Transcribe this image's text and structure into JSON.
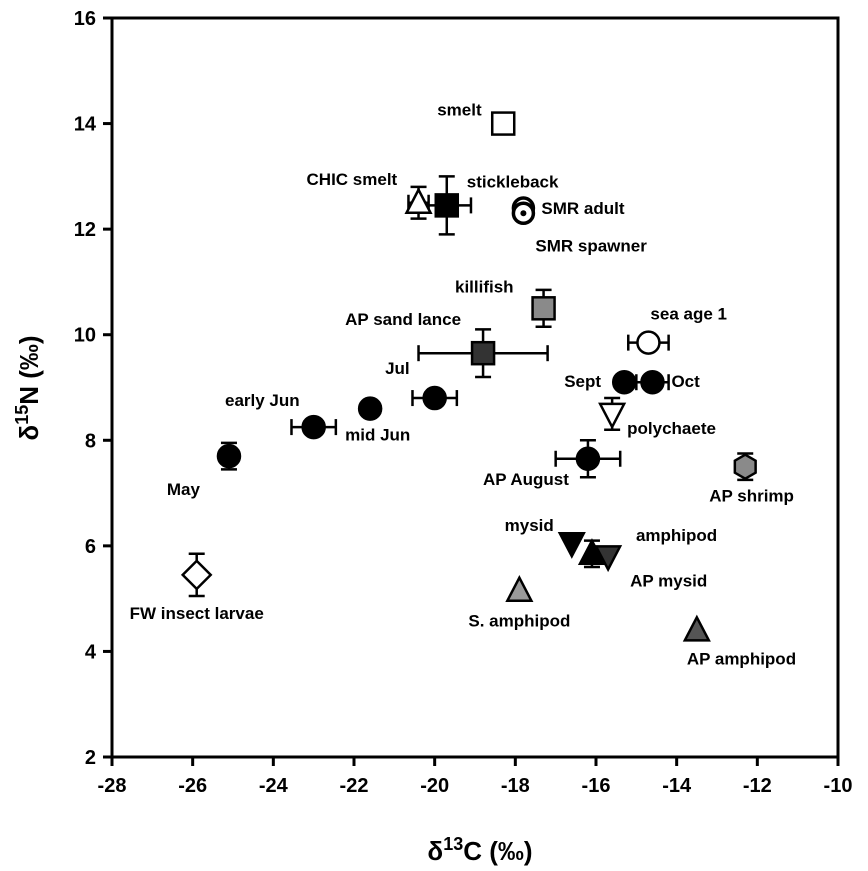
{
  "chart_data": {
    "type": "scatter",
    "xlabel": {
      "prefix": "δ",
      "sup": "13",
      "rest": "C (‰)"
    },
    "ylabel": {
      "prefix": "δ",
      "sup": "15",
      "rest": "N (‰)"
    },
    "xlim": [
      -28,
      -10
    ],
    "ylim": [
      2,
      16
    ],
    "xticks": [
      -28,
      -26,
      -24,
      -22,
      -20,
      -18,
      -16,
      -14,
      -12,
      -10
    ],
    "yticks": [
      2,
      4,
      6,
      8,
      10,
      12,
      14,
      16
    ],
    "grid": false,
    "points": [
      {
        "label": "smelt",
        "x": -18.3,
        "y": 14.0,
        "marker": "square-open",
        "color": "#ffffff"
      },
      {
        "label": "CHIC smelt",
        "x": -20.4,
        "y": 12.5,
        "marker": "triangle-open",
        "color": "#ffffff",
        "yerr": 0.3,
        "xerr": 0.25
      },
      {
        "label": "stickleback",
        "x": -19.7,
        "y": 12.45,
        "marker": "square",
        "color": "#000000",
        "yerr": 0.55,
        "xerr": 0.6
      },
      {
        "label": "SMR adult",
        "x": -17.8,
        "y": 12.4,
        "marker": "circle-dot",
        "color": "#000000"
      },
      {
        "label": "SMR spawner",
        "x": -17.8,
        "y": 12.3,
        "marker": "circle-dot",
        "color": "#000000"
      },
      {
        "label": "killifish",
        "x": -17.3,
        "y": 10.5,
        "marker": "square",
        "color": "#8a8a8a",
        "yerr": 0.35
      },
      {
        "label": "AP sand lance",
        "x": -18.8,
        "y": 9.65,
        "marker": "square",
        "color": "#333333",
        "yerr": 0.45,
        "xerr": 1.6
      },
      {
        "label": "sea age 1",
        "x": -14.7,
        "y": 9.85,
        "marker": "circle-open",
        "color": "#ffffff",
        "xerr": 0.5
      },
      {
        "label": "Sept",
        "x": -15.3,
        "y": 9.1,
        "marker": "circle",
        "color": "#000000"
      },
      {
        "label": "Oct",
        "x": -14.6,
        "y": 9.1,
        "marker": "circle",
        "color": "#000000",
        "xerr": 0.4
      },
      {
        "label": "Jul",
        "x": -20.0,
        "y": 8.8,
        "marker": "circle",
        "color": "#000000",
        "xerr": 0.55
      },
      {
        "label": "mid Jun",
        "x": -21.6,
        "y": 8.6,
        "marker": "circle",
        "color": "#000000"
      },
      {
        "label": "early Jun",
        "x": -23.0,
        "y": 8.25,
        "marker": "circle",
        "color": "#000000",
        "xerr": 0.55
      },
      {
        "label": "May",
        "x": -25.1,
        "y": 7.7,
        "marker": "circle",
        "color": "#000000",
        "yerr": 0.25
      },
      {
        "label": "polychaete",
        "x": -15.6,
        "y": 8.5,
        "marker": "triangle-down-open",
        "color": "#ffffff",
        "yerr": 0.3
      },
      {
        "label": "AP August",
        "x": -16.2,
        "y": 7.65,
        "marker": "circle",
        "color": "#000000",
        "yerr": 0.35,
        "xerr": 0.8
      },
      {
        "label": "AP shrimp",
        "x": -12.3,
        "y": 7.5,
        "marker": "hexagon",
        "color": "#8a8a8a",
        "yerr": 0.25
      },
      {
        "label": "mysid",
        "x": -16.6,
        "y": 6.05,
        "marker": "triangle-down",
        "color": "#000000"
      },
      {
        "label": "amphipod",
        "x": -16.1,
        "y": 5.85,
        "marker": "triangle",
        "color": "#000000",
        "yerr": 0.25
      },
      {
        "label": "AP mysid",
        "x": -15.7,
        "y": 5.8,
        "marker": "triangle-down",
        "color": "#333333"
      },
      {
        "label": "S. amphipod",
        "x": -17.9,
        "y": 5.15,
        "marker": "triangle",
        "color": "#9a9a9a"
      },
      {
        "label": "AP amphipod",
        "x": -13.5,
        "y": 4.4,
        "marker": "triangle",
        "color": "#555555"
      },
      {
        "label": "FW insect larvae",
        "x": -25.9,
        "y": 5.45,
        "marker": "diamond-open",
        "color": "#ffffff",
        "yerr": 0.4
      }
    ]
  }
}
